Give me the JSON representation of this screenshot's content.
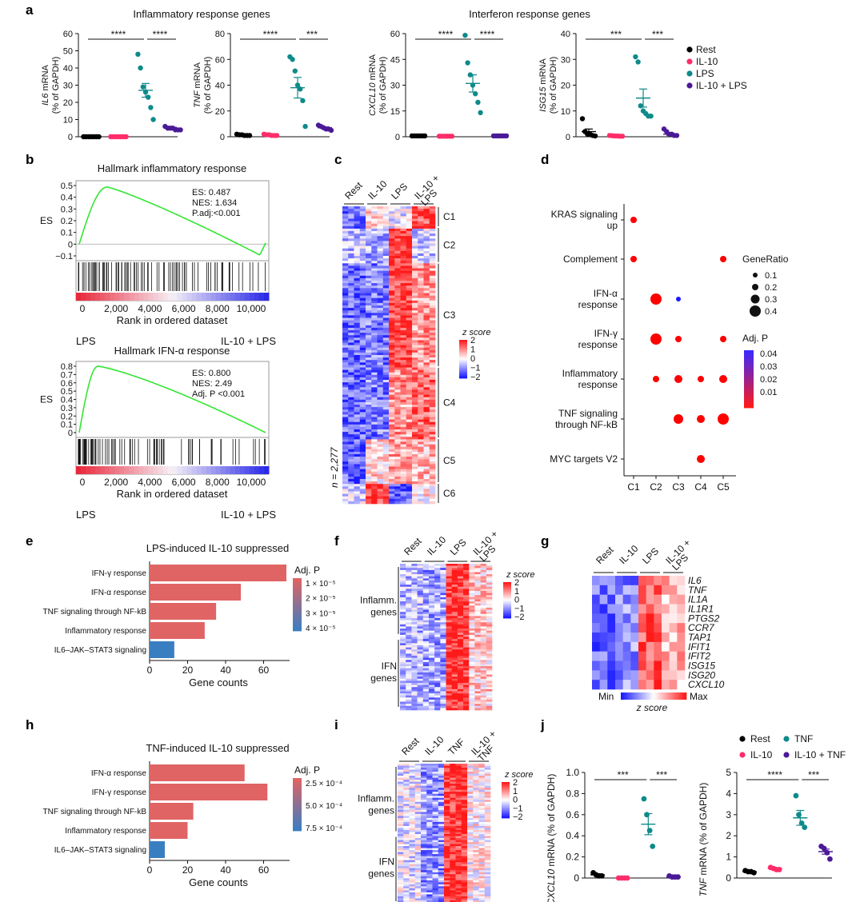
{
  "panel_labels": {
    "a": "a",
    "b": "b",
    "c": "c",
    "d": "d",
    "e": "e",
    "f": "f",
    "g": "g",
    "h": "h",
    "i": "i",
    "j": "j"
  },
  "colors": {
    "rest": "#000000",
    "il10": "#ff2d6a",
    "lps": "#0f8a8a",
    "il10lps": "#4b1a96",
    "bar_red": "#e06464",
    "bar_blue": "#3a7ec2",
    "gsea_line": "#33e633",
    "dot_red": "#ff0000",
    "dot_blue": "#1a1aff"
  },
  "panel_a": {
    "title_inflam": "Inflammatory response genes",
    "title_ifn": "Interferon response genes",
    "legend": [
      "Rest",
      "IL-10",
      "LPS",
      "IL-10 + LPS"
    ],
    "charts": [
      {
        "gene": "IL6",
        "ylabel_suffix": " mRNA",
        "ylabel2": "(% of GAPDH)",
        "ymax": 60,
        "ticks": [
          0,
          10,
          20,
          30,
          40,
          50,
          60
        ],
        "sig": [
          "****",
          "****"
        ],
        "points": [
          [
            0,
            0,
            0,
            0,
            0,
            0,
            0
          ],
          [
            0,
            0,
            0,
            0,
            0,
            0,
            0
          ],
          [
            48,
            40,
            29,
            26,
            23,
            17,
            10
          ],
          [
            6,
            5,
            5,
            5,
            4,
            4,
            4
          ]
        ],
        "means": [
          0,
          0,
          27,
          5
        ],
        "sem": [
          0,
          0,
          4,
          0.5
        ]
      },
      {
        "gene": "TNF",
        "ylabel_suffix": " mRNA",
        "ylabel2": "(% of GAPDH)",
        "ymax": 80,
        "ticks": [
          0,
          20,
          40,
          60,
          80
        ],
        "sig": [
          "****",
          "***"
        ],
        "points": [
          [
            2,
            1.5,
            1.5,
            1,
            1,
            1
          ],
          [
            2,
            1.5,
            1.5,
            1,
            1,
            1
          ],
          [
            62,
            60,
            51,
            40,
            37,
            28,
            8
          ],
          [
            9,
            8,
            7,
            6,
            6,
            5
          ]
        ],
        "means": [
          1.3,
          1.3,
          38,
          7
        ],
        "sem": [
          0.2,
          0.2,
          8,
          0.6
        ]
      },
      {
        "gene": "CXCL10",
        "ylabel_suffix": " mRNA",
        "ylabel2": "(% of GAPDH)",
        "ymax": 60,
        "ticks": [
          0,
          15,
          30,
          45,
          60
        ],
        "sig": [
          "****",
          "****"
        ],
        "points": [
          [
            0.5,
            0.5,
            0.5,
            0.5,
            0.5,
            0.5
          ],
          [
            0.3,
            0.3,
            0.3,
            0.3,
            0.3,
            0.3
          ],
          [
            59,
            43,
            36,
            30,
            25,
            20,
            14
          ],
          [
            0.5,
            0.5,
            0.5,
            0.5,
            0.5,
            0.5
          ]
        ],
        "means": [
          0.5,
          0.3,
          31,
          0.5
        ],
        "sem": [
          0,
          0,
          5,
          0
        ]
      },
      {
        "gene": "ISG15",
        "ylabel_suffix": " mRNA",
        "ylabel2": "(% of GAPDH)",
        "ymax": 40,
        "ticks": [
          0,
          10,
          20,
          30,
          40
        ],
        "sig": [
          "***",
          "***"
        ],
        "points": [
          [
            7,
            2,
            1,
            1,
            0.5,
            0.3
          ],
          [
            0.5,
            0.4,
            0.3,
            0.3,
            0.2,
            0.2
          ],
          [
            31,
            29,
            12,
            10,
            9,
            8,
            8
          ],
          [
            3,
            2,
            1,
            1,
            0.5,
            0.5
          ]
        ],
        "means": [
          2,
          0.3,
          15,
          1
        ],
        "sem": [
          1,
          0.1,
          3.5,
          0.4
        ]
      }
    ]
  },
  "panel_b": {
    "plots": [
      {
        "title": "Hallmark inflammatory response",
        "es": "ES: 0.487",
        "nes": "NES: 1.634",
        "p": "P.adj:<0.001",
        "ylabel": "ES",
        "yticks": [
          "0.5",
          "0.4",
          "0.3",
          "0.2",
          "0.1",
          "0",
          "−0.1"
        ],
        "xticks": [
          "0",
          "2,000",
          "4,000",
          "6,000",
          "8,000",
          "10,000"
        ],
        "xlabel": "Rank in ordered dataset",
        "left": "LPS",
        "right": "IL-10 + LPS"
      },
      {
        "title": "Hallmark IFN-α response",
        "es": "ES: 0.800",
        "nes": "NES: 2.49",
        "p": "Adj. P <0.001",
        "ylabel": "ES",
        "yticks": [
          "0.8",
          "0.7",
          "0.6",
          "0.5",
          "0.4",
          "0.3",
          "0.2",
          "0.1",
          "0"
        ],
        "xticks": [
          "0",
          "2,000",
          "4,000",
          "6,000",
          "8,000",
          "10,000"
        ],
        "xlabel": "Rank in ordered dataset",
        "left": "LPS",
        "right": "IL-10 + LPS"
      }
    ]
  },
  "panel_c": {
    "columns": [
      "Rest",
      "IL-10",
      "LPS",
      "IL-10 + LPS"
    ],
    "clusters": [
      "C1",
      "C2",
      "C3",
      "C4",
      "C5",
      "C6"
    ],
    "n_label": "n = 2,277",
    "zlabel": "z score",
    "zticks": [
      "2",
      "1",
      "0",
      "−1",
      "−2"
    ]
  },
  "panel_d": {
    "terms": [
      "KRAS signaling up",
      "Complement",
      "IFN-α response",
      "IFN-γ response",
      "Inflammatory response",
      "TNF signaling through NF-kB",
      "MYC targets V2"
    ],
    "clusters": [
      "C1",
      "C2",
      "C3",
      "C4",
      "C5"
    ],
    "generatio_title": "GeneRatio",
    "generatio_ticks": [
      "0.1",
      "0.2",
      "0.3",
      "0.4"
    ],
    "adjp_title": "Adj. P",
    "adjp_ticks": [
      "0.04",
      "0.03",
      "0.02",
      "0.01"
    ]
  },
  "panel_e": {
    "title": "LPS-induced IL-10 suppressed",
    "terms": [
      "IFN-γ response",
      "IFN-α response",
      "TNF signaling through NF-kB",
      "Inflammatory response",
      "IL6–JAK–STAT3 signaling"
    ],
    "counts": [
      72,
      48,
      35,
      29,
      13
    ],
    "xticks": [
      0,
      20,
      40,
      60
    ],
    "xlabel": "Gene counts",
    "legend_title": "Adj. P",
    "legend_ticks": [
      "1 × 10⁻⁵",
      "2 × 10⁻⁵",
      "3 × 10⁻⁵",
      "4 × 10⁻⁵"
    ]
  },
  "panel_f": {
    "columns": [
      "Rest",
      "IL-10",
      "LPS",
      "IL-10 + LPS"
    ],
    "row_groups": [
      "Inflamm. genes",
      "IFN genes"
    ],
    "zlabel": "z score",
    "zticks": [
      "2",
      "1",
      "0",
      "−1",
      "−2"
    ]
  },
  "panel_g": {
    "columns": [
      "Rest",
      "IL-10",
      "LPS",
      "IL-10 + LPS"
    ],
    "genes": [
      "IL6",
      "TNF",
      "IL1A",
      "IL1R1",
      "PTGS2",
      "CCR7",
      "TAP1",
      "IFIT1",
      "IFIT2",
      "ISG15",
      "ISG20",
      "CXCL10"
    ],
    "min": "Min",
    "max": "Max",
    "zlabel": "z score"
  },
  "panel_h": {
    "title": "TNF-induced IL-10 suppressed",
    "terms": [
      "IFN-α response",
      "IFN-γ response",
      "TNF signaling through NF-kB",
      "Inflammatory response",
      "IL6–JAK–STAT3 signaling"
    ],
    "counts": [
      50,
      62,
      23,
      20,
      8
    ],
    "xticks": [
      0,
      20,
      40,
      60
    ],
    "xlabel": "Gene counts",
    "legend_title": "Adj. P",
    "legend_ticks": [
      "2.5 × 10⁻⁴",
      "5.0 × 10⁻⁴",
      "7.5 × 10⁻⁴"
    ]
  },
  "panel_i": {
    "columns": [
      "Rest",
      "IL-10",
      "TNF",
      "IL-10 + TNF"
    ],
    "row_groups": [
      "Inflamm. genes",
      "IFN genes"
    ],
    "zlabel": "z score",
    "zticks": [
      "2",
      "1",
      "0",
      "−1",
      "−2"
    ]
  },
  "panel_j": {
    "legend": [
      "Rest",
      "TNF",
      "IL-10",
      "IL-10 + TNF"
    ],
    "charts": [
      {
        "gene": "CXCL10",
        "ylabel": " mRNA (% of GAPDH)",
        "ymax": 1.0,
        "ticks": [
          "0",
          "0.2",
          "0.4",
          "0.6",
          "0.8",
          "1.0"
        ],
        "tickvals": [
          0,
          0.2,
          0.4,
          0.6,
          0.8,
          1.0
        ],
        "sig": [
          "***",
          "***"
        ],
        "points": [
          [
            0.05,
            0.03,
            0.02,
            0.02
          ],
          [
            0,
            0,
            0,
            0
          ],
          [
            0.75,
            0.6,
            0.45,
            0.3
          ],
          [
            0.02,
            0.01,
            0.01,
            0.01
          ]
        ],
        "means": [
          0.03,
          0,
          0.51,
          0.01
        ],
        "sem": [
          0.01,
          0,
          0.1,
          0
        ]
      },
      {
        "gene": "TNF",
        "ylabel": " mRNA (% of GAPDH)",
        "ymax": 5,
        "ticks": [
          "0",
          "1",
          "2",
          "3",
          "4",
          "5"
        ],
        "tickvals": [
          0,
          1,
          2,
          3,
          4,
          5
        ],
        "sig": [
          "****",
          "***"
        ],
        "points": [
          [
            0.35,
            0.3,
            0.3,
            0.25
          ],
          [
            0.5,
            0.45,
            0.4,
            0.4
          ],
          [
            3.9,
            3.0,
            2.6,
            2.4
          ],
          [
            1.5,
            1.4,
            1.2,
            0.9
          ]
        ],
        "means": [
          0.3,
          0.45,
          2.85,
          1.25
        ],
        "sem": [
          0.03,
          0.03,
          0.35,
          0.12
        ]
      }
    ]
  }
}
